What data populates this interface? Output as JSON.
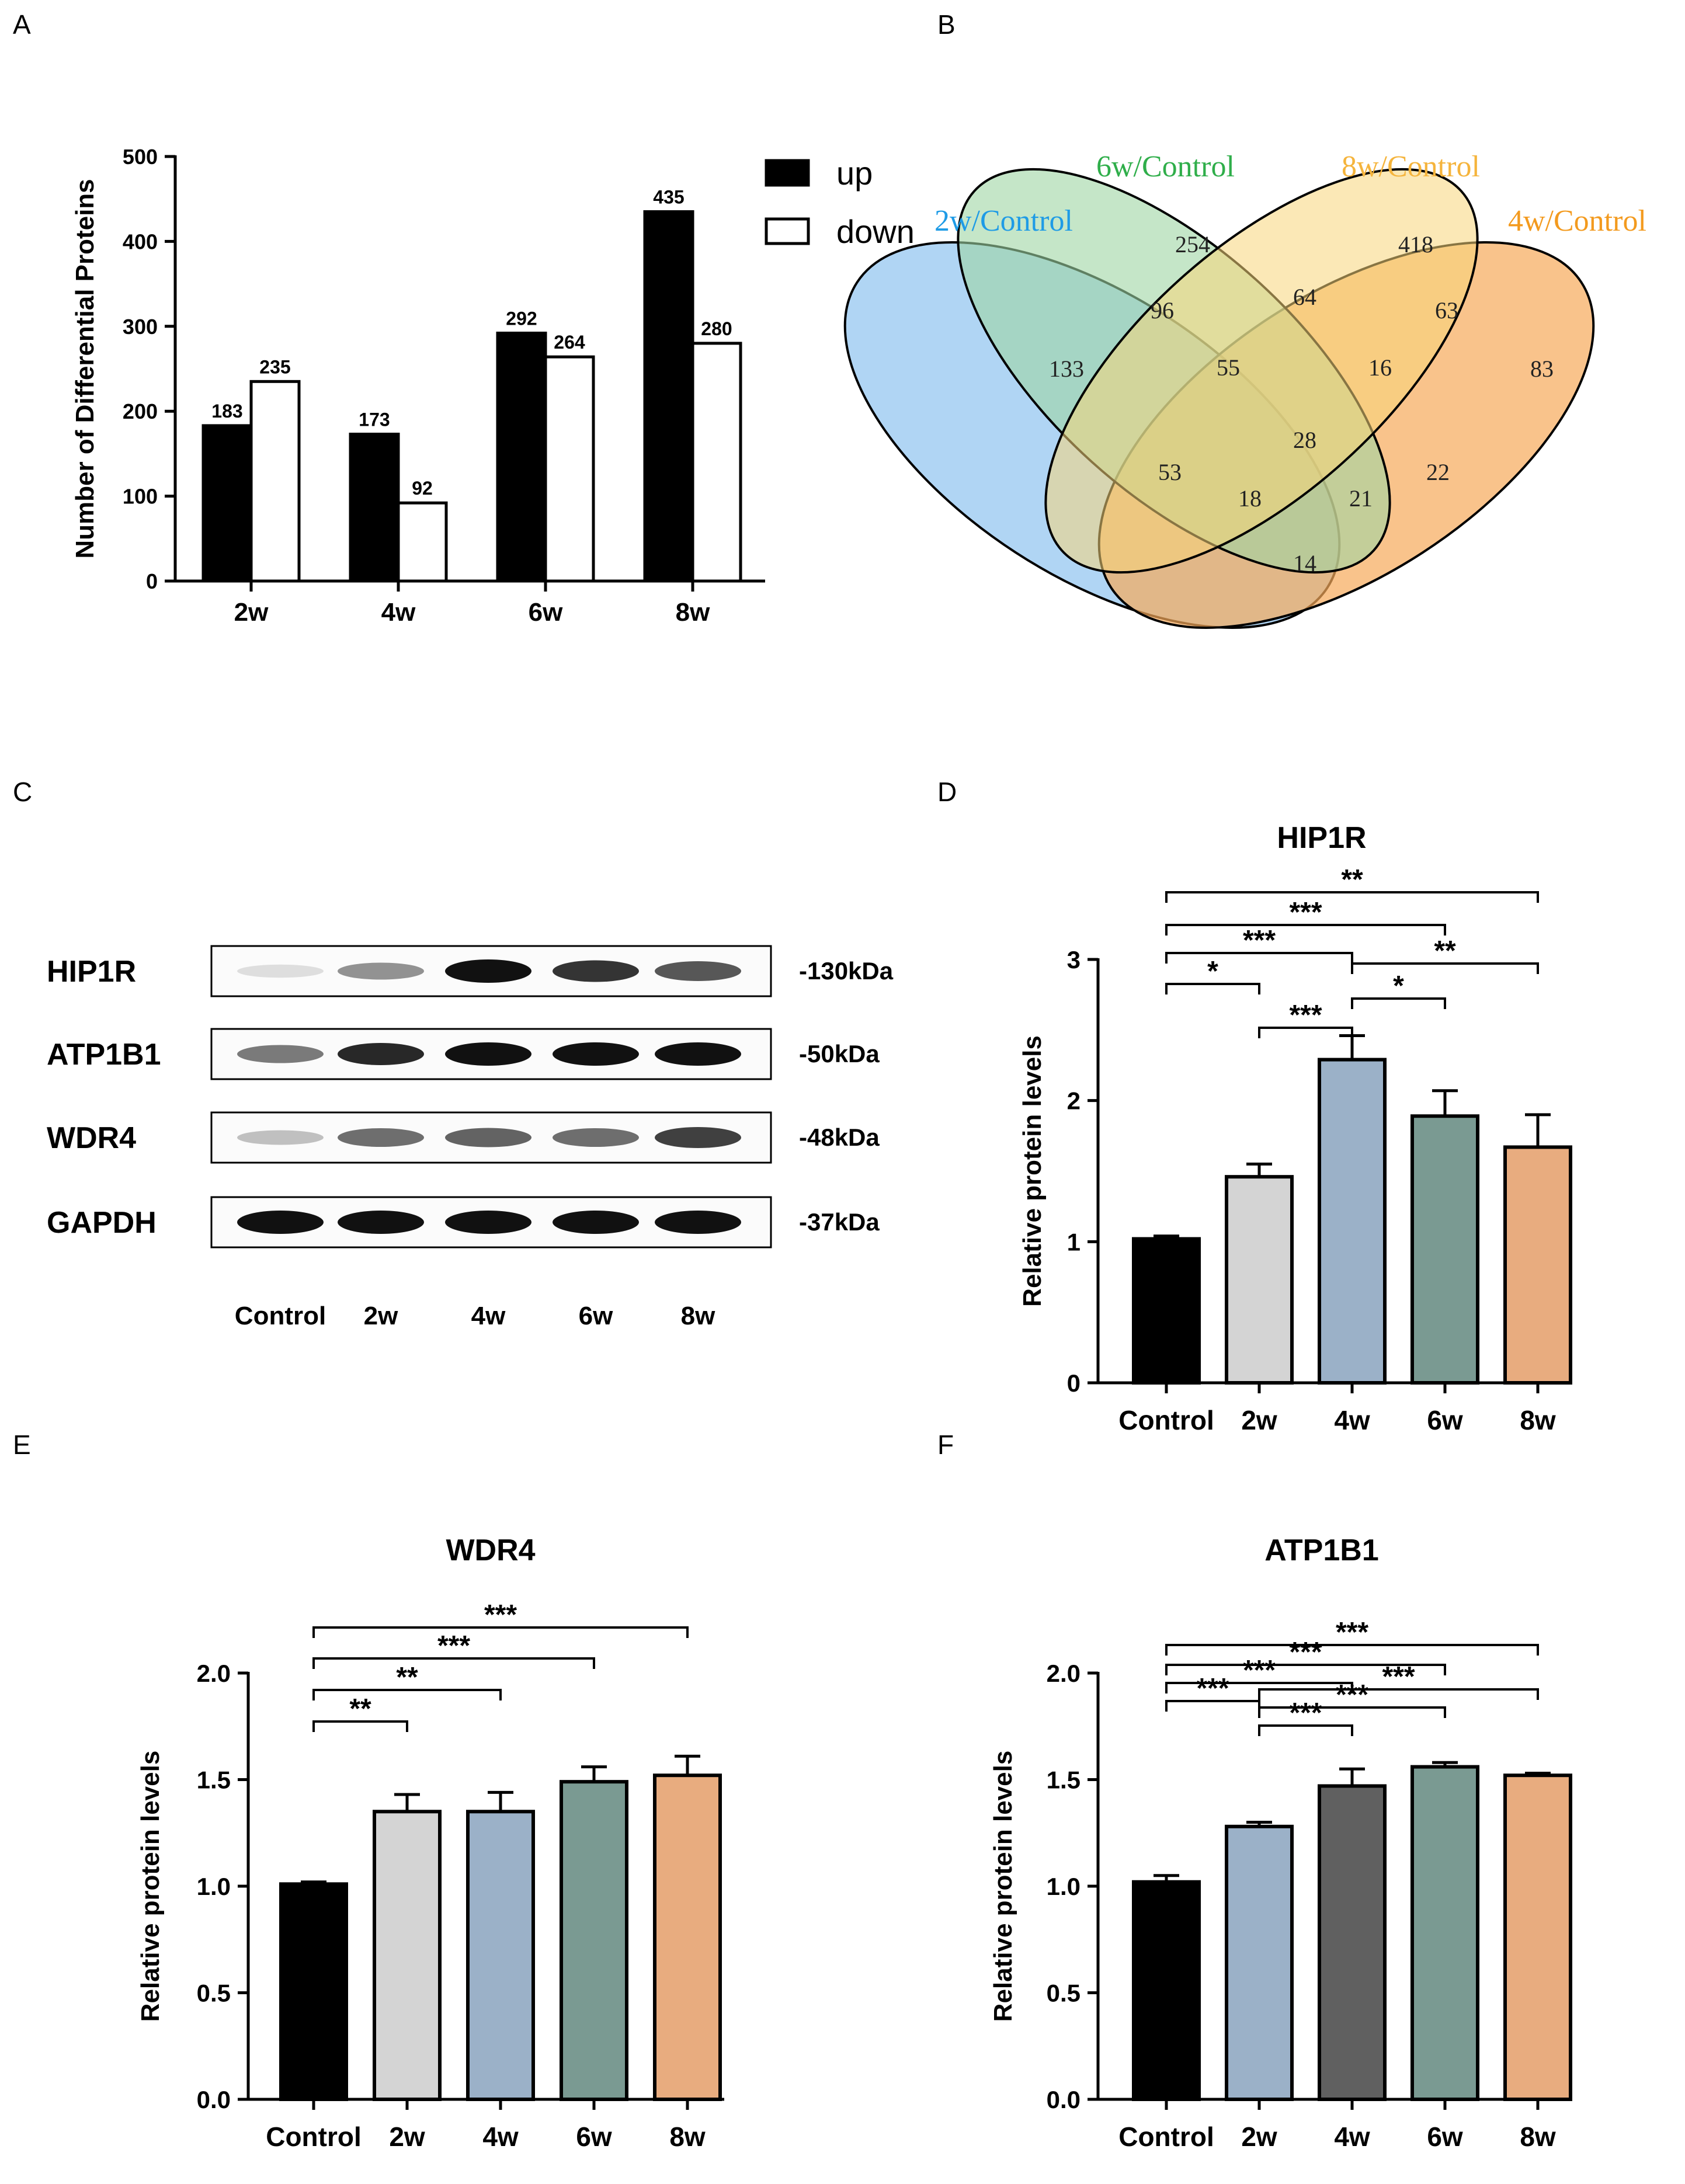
{
  "panels": [
    "A",
    "B",
    "C",
    "D",
    "E",
    "F"
  ],
  "chart_data": [
    {
      "id": "A",
      "type": "bar",
      "ylabel": "Number of Differential Proteins",
      "ylim": [
        0,
        500
      ],
      "yticks": [
        0,
        100,
        200,
        300,
        400,
        500
      ],
      "categories": [
        "2w",
        "4w",
        "6w",
        "8w"
      ],
      "series": [
        {
          "name": "up",
          "color": "#000000",
          "values": [
            183,
            173,
            292,
            435
          ]
        },
        {
          "name": "down",
          "color": "#ffffff",
          "values": [
            235,
            92,
            264,
            280
          ]
        }
      ],
      "legend": "top-right"
    },
    {
      "id": "B",
      "type": "venn",
      "sets": [
        {
          "name": "2w/Control",
          "color": "#1e9be6"
        },
        {
          "name": "6w/Control",
          "color": "#2fae4a"
        },
        {
          "name": "8w/Control",
          "color": "#f5b43c"
        },
        {
          "name": "4w/Control",
          "color": "#f39a1e"
        }
      ],
      "counts": [
        "133",
        "254",
        "418",
        "83",
        "96",
        "64",
        "63",
        "55",
        "16",
        "28",
        "53",
        "22",
        "18",
        "21",
        "14"
      ]
    },
    {
      "id": "C",
      "type": "western_blot",
      "proteins": [
        "HIP1R",
        "ATP1B1",
        "WDR4",
        "GAPDH"
      ],
      "sizes": [
        "-130kDa",
        "-50kDa",
        "-48kDa",
        "-37kDa"
      ],
      "lanes": [
        "Control",
        "2w",
        "4w",
        "6w",
        "8w"
      ]
    },
    {
      "id": "D",
      "type": "bar",
      "title": "HIP1R",
      "ylabel": "Relative protein levels",
      "ylim": [
        0,
        3
      ],
      "yticks": [
        "0",
        "1",
        "2",
        "3"
      ],
      "categories": [
        "Control",
        "2w",
        "4w",
        "6w",
        "8w"
      ],
      "values": [
        1.02,
        1.46,
        2.29,
        1.89,
        1.67
      ],
      "errors": [
        0.02,
        0.09,
        0.17,
        0.18,
        0.23
      ],
      "colors": [
        "#000000",
        "#d4d4d4",
        "#9bb1c8",
        "#7a9a92",
        "#e8ac7f"
      ],
      "significance": [
        {
          "from": 0,
          "to": 1,
          "label": "*"
        },
        {
          "from": 1,
          "to": 2,
          "label": "***"
        },
        {
          "from": 2,
          "to": 3,
          "label": "*"
        },
        {
          "from": 0,
          "to": 2,
          "label": "***"
        },
        {
          "from": 2,
          "to": 4,
          "label": "**"
        },
        {
          "from": 0,
          "to": 3,
          "label": "***"
        },
        {
          "from": 0,
          "to": 4,
          "label": "**"
        }
      ]
    },
    {
      "id": "E",
      "type": "bar",
      "title": "WDR4",
      "ylabel": "Relative protein levels",
      "ylim": [
        0,
        2
      ],
      "yticks": [
        "0.0",
        "0.5",
        "1.0",
        "1.5",
        "2.0"
      ],
      "categories": [
        "Control",
        "2w",
        "4w",
        "6w",
        "8w"
      ],
      "values": [
        1.01,
        1.35,
        1.35,
        1.49,
        1.52
      ],
      "errors": [
        0.01,
        0.08,
        0.09,
        0.07,
        0.09
      ],
      "colors": [
        "#000000",
        "#d4d4d4",
        "#9bb1c8",
        "#7a9a92",
        "#e8ac7f"
      ],
      "significance": [
        {
          "from": 0,
          "to": 1,
          "label": "**"
        },
        {
          "from": 0,
          "to": 2,
          "label": "**"
        },
        {
          "from": 0,
          "to": 3,
          "label": "***"
        },
        {
          "from": 0,
          "to": 4,
          "label": "***"
        }
      ]
    },
    {
      "id": "F",
      "type": "bar",
      "title": "ATP1B1",
      "ylabel": "Relative protein levels",
      "ylim": [
        0,
        2
      ],
      "yticks": [
        "0.0",
        "0.5",
        "1.0",
        "1.5",
        "2.0"
      ],
      "categories": [
        "Control",
        "2w",
        "4w",
        "6w",
        "8w"
      ],
      "values": [
        1.02,
        1.28,
        1.47,
        1.56,
        1.52
      ],
      "errors": [
        0.03,
        0.02,
        0.08,
        0.02,
        0.01
      ],
      "colors": [
        "#000000",
        "#9bb1c8",
        "#606060",
        "#7a9a92",
        "#e8ac7f"
      ],
      "significance": [
        {
          "from": 1,
          "to": 2,
          "label": "***"
        },
        {
          "from": 1,
          "to": 3,
          "label": "***"
        },
        {
          "from": 1,
          "to": 4,
          "label": "***"
        },
        {
          "from": 0,
          "to": 1,
          "label": "***"
        },
        {
          "from": 0,
          "to": 2,
          "label": "***"
        },
        {
          "from": 0,
          "to": 3,
          "label": "***"
        },
        {
          "from": 0,
          "to": 4,
          "label": "***"
        }
      ]
    }
  ]
}
